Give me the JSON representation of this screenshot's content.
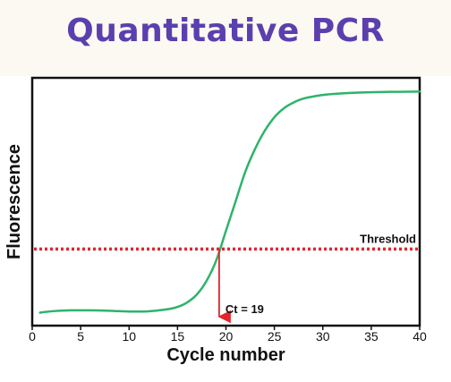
{
  "title": "Quantitative PCR",
  "chart_data": {
    "type": "line",
    "title": "Quantitative PCR",
    "xlabel": "Cycle number",
    "ylabel": "Fluorescence",
    "xlim": [
      0,
      40
    ],
    "ylim": [
      0,
      1
    ],
    "xticks": [
      0,
      5,
      10,
      15,
      20,
      25,
      30,
      35,
      40
    ],
    "y_ticks_shown": false,
    "grid": false,
    "series": [
      {
        "color": "#2eb36a",
        "x": [
          0.8,
          2,
          4,
          6,
          8,
          10,
          12,
          14,
          15,
          16,
          17,
          18,
          19,
          20,
          21,
          22,
          23,
          24,
          25,
          26,
          27,
          28,
          30,
          32,
          34,
          36,
          38,
          40
        ],
        "y": [
          0.01,
          0.016,
          0.02,
          0.02,
          0.018,
          0.015,
          0.016,
          0.025,
          0.035,
          0.055,
          0.09,
          0.15,
          0.24,
          0.37,
          0.5,
          0.63,
          0.73,
          0.81,
          0.87,
          0.91,
          0.935,
          0.952,
          0.968,
          0.975,
          0.979,
          0.981,
          0.982,
          0.983
        ]
      }
    ],
    "threshold": {
      "label": "Threshold",
      "y": 0.29,
      "color": "#e3242b",
      "style": "dotted"
    },
    "ct_marker": {
      "label": "Ct = 19",
      "x": 19.3,
      "color": "#e3242b"
    }
  }
}
